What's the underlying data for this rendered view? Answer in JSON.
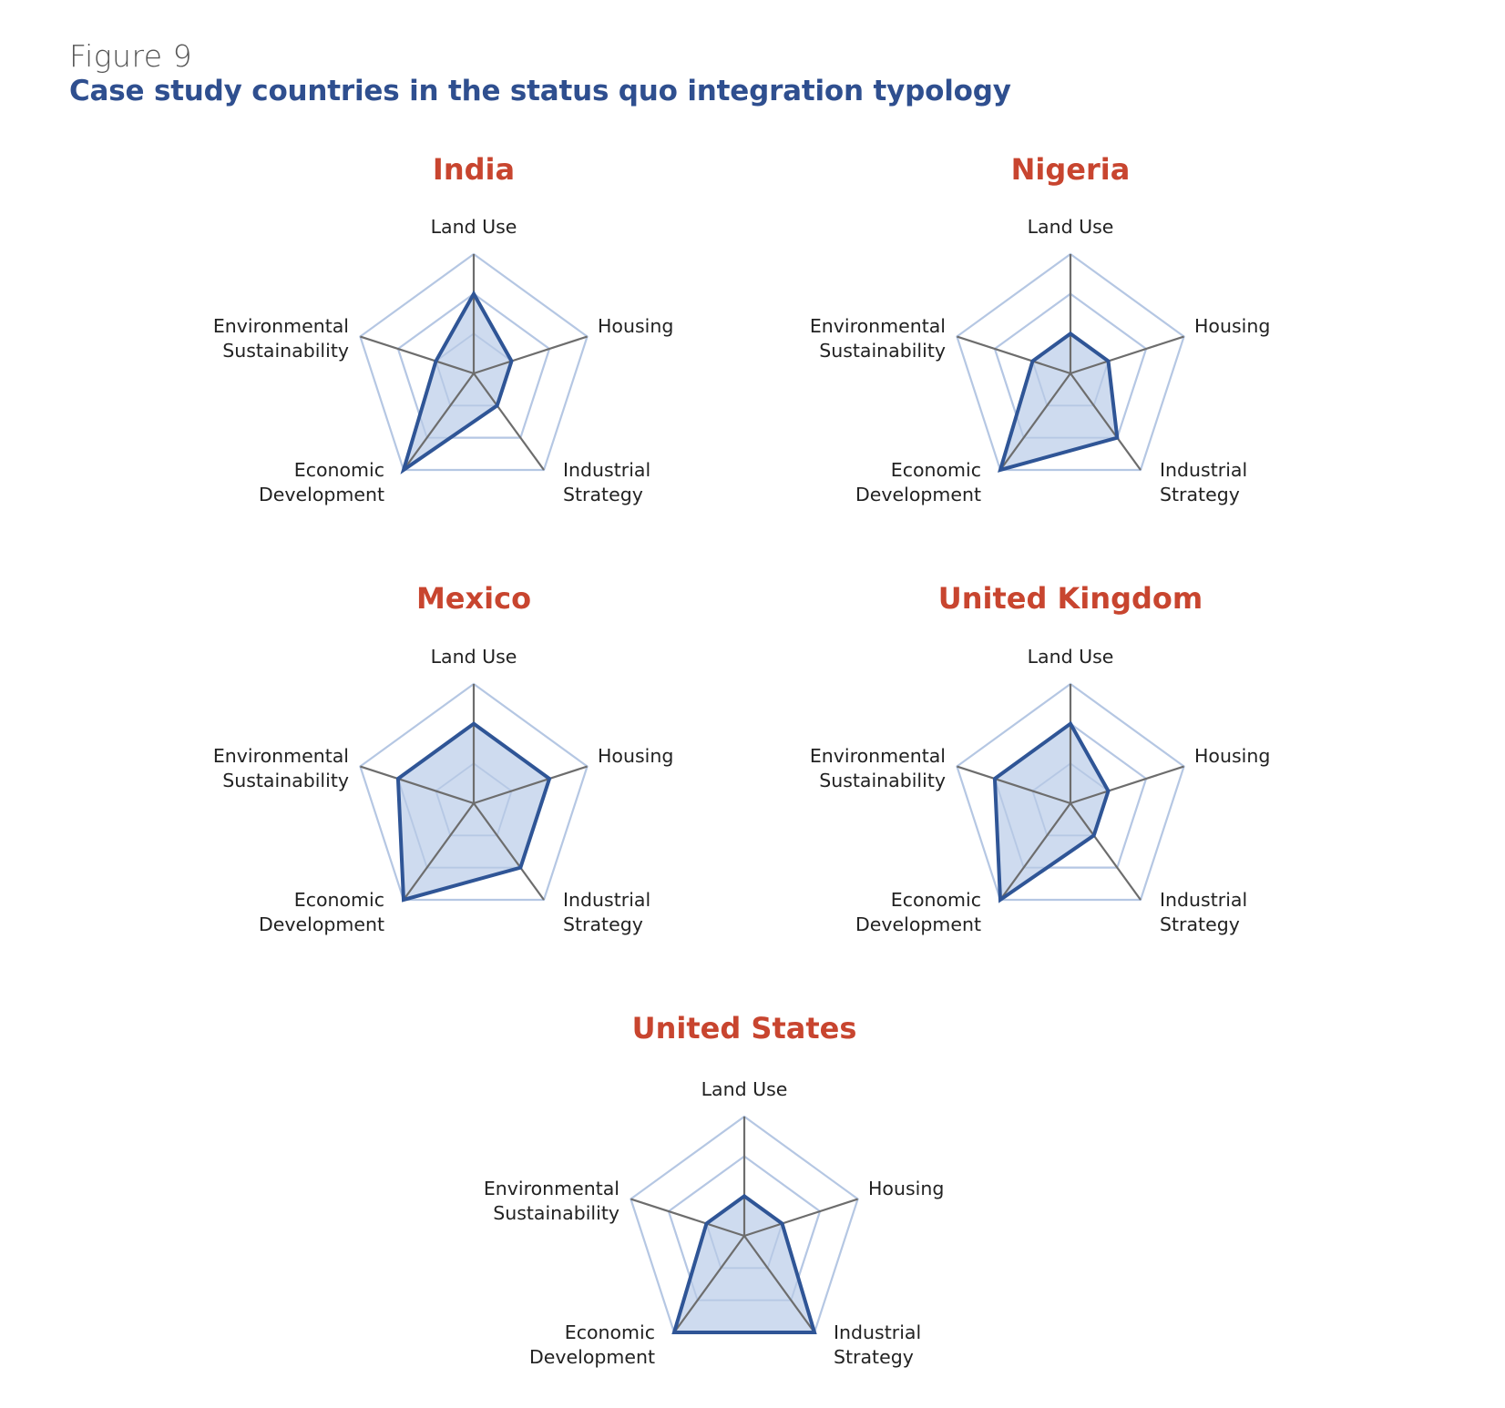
{
  "figure": {
    "label": "Figure 9",
    "title": "Case study countries in the status quo integration typology"
  },
  "colors": {
    "title_text": "#2f4f8f",
    "country_title": "#c8452f",
    "grid": "#b5c7e3",
    "spoke": "#6d6d6d",
    "series_line": "#2f5596",
    "series_fill": "#c5d5ec"
  },
  "chart_data": [
    {
      "type": "radar",
      "title": "India",
      "axes": [
        [
          "Land Use"
        ],
        [
          "Housing"
        ],
        [
          "Industrial",
          "Strategy"
        ],
        [
          "Economic",
          "Development"
        ],
        [
          "Environmental",
          "Sustainability"
        ]
      ],
      "scale": [
        0,
        3
      ],
      "gridlines": [
        1,
        2,
        3
      ],
      "values": [
        2,
        1,
        1,
        3,
        1
      ]
    },
    {
      "type": "radar",
      "title": "Nigeria",
      "axes": [
        [
          "Land Use"
        ],
        [
          "Housing"
        ],
        [
          "Industrial",
          "Strategy"
        ],
        [
          "Economic",
          "Development"
        ],
        [
          "Environmental",
          "Sustainability"
        ]
      ],
      "scale": [
        0,
        3
      ],
      "gridlines": [
        1,
        2,
        3
      ],
      "values": [
        1,
        1,
        2,
        3,
        1
      ]
    },
    {
      "type": "radar",
      "title": "Mexico",
      "axes": [
        [
          "Land Use"
        ],
        [
          "Housing"
        ],
        [
          "Industrial",
          "Strategy"
        ],
        [
          "Economic",
          "Development"
        ],
        [
          "Environmental",
          "Sustainability"
        ]
      ],
      "scale": [
        0,
        3
      ],
      "gridlines": [
        1,
        2,
        3
      ],
      "values": [
        2,
        2,
        2,
        3,
        2
      ]
    },
    {
      "type": "radar",
      "title": "United Kingdom",
      "axes": [
        [
          "Land Use"
        ],
        [
          "Housing"
        ],
        [
          "Industrial",
          "Strategy"
        ],
        [
          "Economic",
          "Development"
        ],
        [
          "Environmental",
          "Sustainability"
        ]
      ],
      "scale": [
        0,
        3
      ],
      "gridlines": [
        1,
        2,
        3
      ],
      "values": [
        2,
        1,
        1,
        3,
        2
      ]
    },
    {
      "type": "radar",
      "title": "United States",
      "axes": [
        [
          "Land Use"
        ],
        [
          "Housing"
        ],
        [
          "Industrial",
          "Strategy"
        ],
        [
          "Economic",
          "Development"
        ],
        [
          "Environmental",
          "Sustainability"
        ]
      ],
      "scale": [
        0,
        3
      ],
      "gridlines": [
        1,
        2,
        3
      ],
      "values": [
        1,
        1,
        3,
        3,
        1
      ]
    }
  ]
}
